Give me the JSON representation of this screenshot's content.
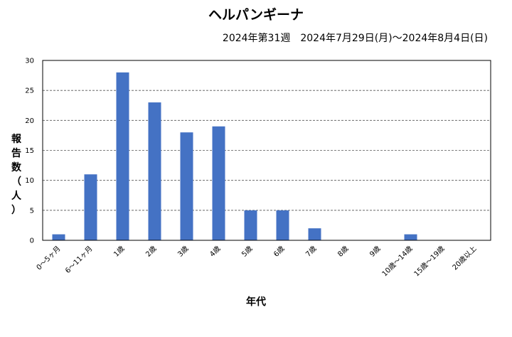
{
  "chart_data": {
    "type": "bar",
    "title": "ヘルパンギーナ",
    "subtitle": "2024年第31週　2024年7月29日(月)～2024年8月4日(日)",
    "ylabel": "報告数（人）",
    "ylabel_chars": [
      "報",
      "告",
      "数",
      "（",
      "人",
      "）"
    ],
    "xlabel": "年代",
    "categories": [
      "0～5ヶ月",
      "6～11ヶ月",
      "1歳",
      "2歳",
      "3歳",
      "4歳",
      "5歳",
      "6歳",
      "7歳",
      "8歳",
      "9歳",
      "10歳～14歳",
      "15歳～19歳",
      "20歳以上"
    ],
    "values": [
      1,
      11,
      28,
      23,
      18,
      19,
      5,
      5,
      2,
      0,
      0,
      1,
      0,
      0
    ],
    "ylim": [
      0,
      30
    ],
    "yticks": [
      0,
      5,
      10,
      15,
      20,
      25,
      30
    ],
    "grid": true,
    "bar_color": "#4472c4"
  }
}
